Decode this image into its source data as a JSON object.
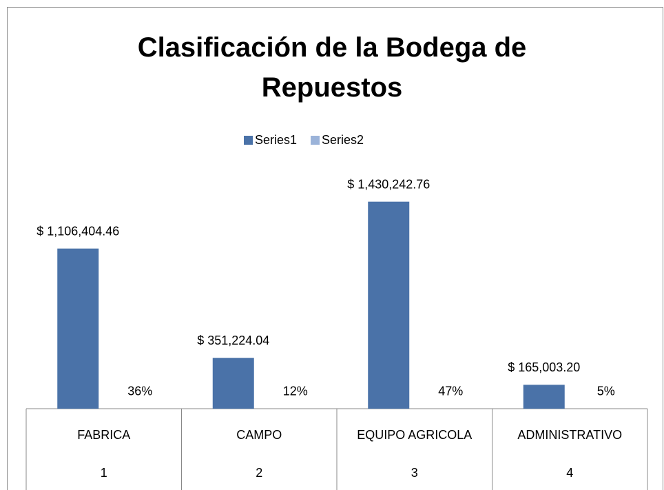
{
  "chart_data": {
    "type": "bar",
    "title": "Clasificación de la Bodega de Repuestos",
    "categories": [
      "FABRICA",
      "CAMPO",
      "EQUIPO AGRICOLA",
      "ADMINISTRATIVO"
    ],
    "category_numbers": [
      "1",
      "2",
      "3",
      "4"
    ],
    "series": [
      {
        "name": "Series1",
        "color": "#4a72a8",
        "values": [
          1106404.46,
          351224.04,
          1430242.76,
          165003.2
        ],
        "value_labels": [
          "$ 1,106,404.46",
          "$ 351,224.04",
          "$ 1,430,242.76",
          "$ 165,003.20"
        ]
      },
      {
        "name": "Series2",
        "color": "#9bb3d9",
        "values": [
          36,
          12,
          47,
          5
        ],
        "value_labels": [
          "36%",
          "12%",
          "47%",
          "5%"
        ]
      }
    ],
    "ylim": [
      0,
      1600000
    ],
    "legend": "top"
  }
}
